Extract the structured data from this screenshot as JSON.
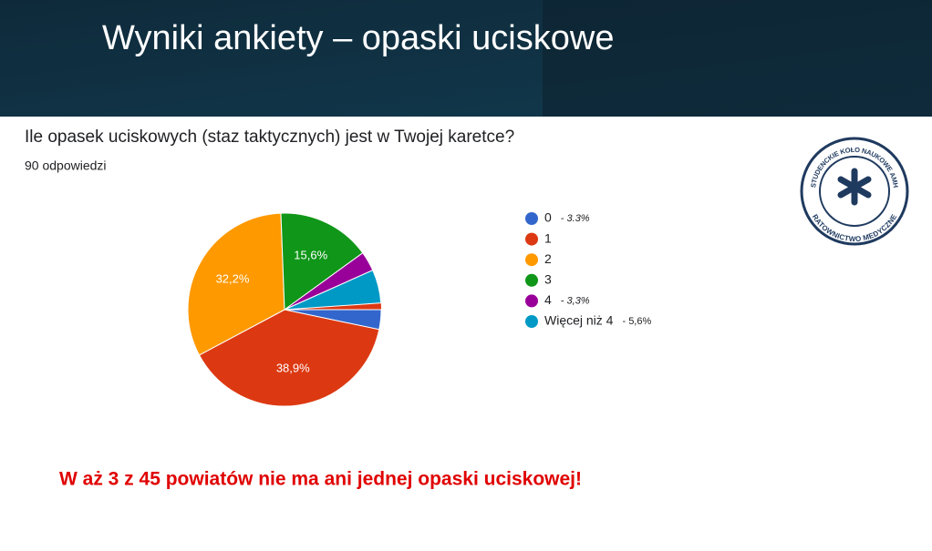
{
  "header": {
    "title": "Wyniki ankiety – opaski uciskowe"
  },
  "chart_data": {
    "type": "pie",
    "title": "Ile opasek uciskowych (staz taktycznych) jest w Twojej karetce?",
    "subtitle": "90 odpowiedzi",
    "categories": [
      "0",
      "1",
      "2",
      "3",
      "4",
      "Więcej niż 4"
    ],
    "values": [
      3.3,
      38.9,
      32.2,
      15.6,
      3.3,
      5.6
    ],
    "value_labels": [
      null,
      "38,9%",
      "32,2%",
      "15,6%",
      null,
      null
    ],
    "legend_notes": [
      "- 3.3%",
      null,
      null,
      null,
      "- 3,3%",
      "- 5,6%"
    ],
    "colors": [
      "#3366cc",
      "#dc3912",
      "#ff9900",
      "#109618",
      "#990099",
      "#0099c6"
    ],
    "legend": "right"
  },
  "footer_note": "W aż 3 z 45 powiatów nie ma ani jednej opaski uciskowej!",
  "logo": {
    "top_text": "STUDENCKIE KOŁO NAUKOWE AMH",
    "bottom_text": "RATOWNICTWO MEDYCZNE"
  }
}
